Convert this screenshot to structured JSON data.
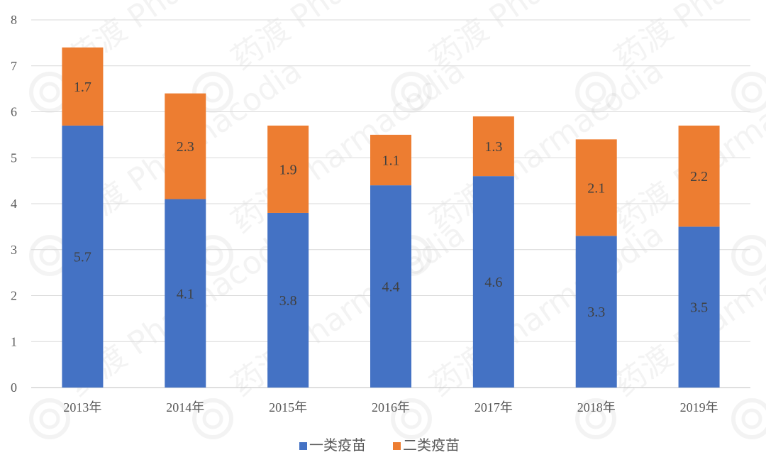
{
  "chart_data": {
    "type": "bar",
    "stacked": true,
    "categories": [
      "2013年",
      "2014年",
      "2015年",
      "2016年",
      "2017年",
      "2018年",
      "2019年"
    ],
    "series": [
      {
        "name": "一类疫苗",
        "values": [
          5.7,
          4.1,
          3.8,
          4.4,
          4.6,
          3.3,
          3.5
        ],
        "color": "#4472C4"
      },
      {
        "name": "二类疫苗",
        "values": [
          1.7,
          2.3,
          1.9,
          1.1,
          1.3,
          2.1,
          2.2
        ],
        "color": "#ED7D31"
      }
    ],
    "yticks": [
      "0",
      "1",
      "2",
      "3",
      "4",
      "5",
      "6",
      "7",
      "8"
    ],
    "ylim": [
      0,
      8
    ],
    "grid": true,
    "legend_position": "bottom",
    "watermark": "药渡 Pharmacodia"
  }
}
